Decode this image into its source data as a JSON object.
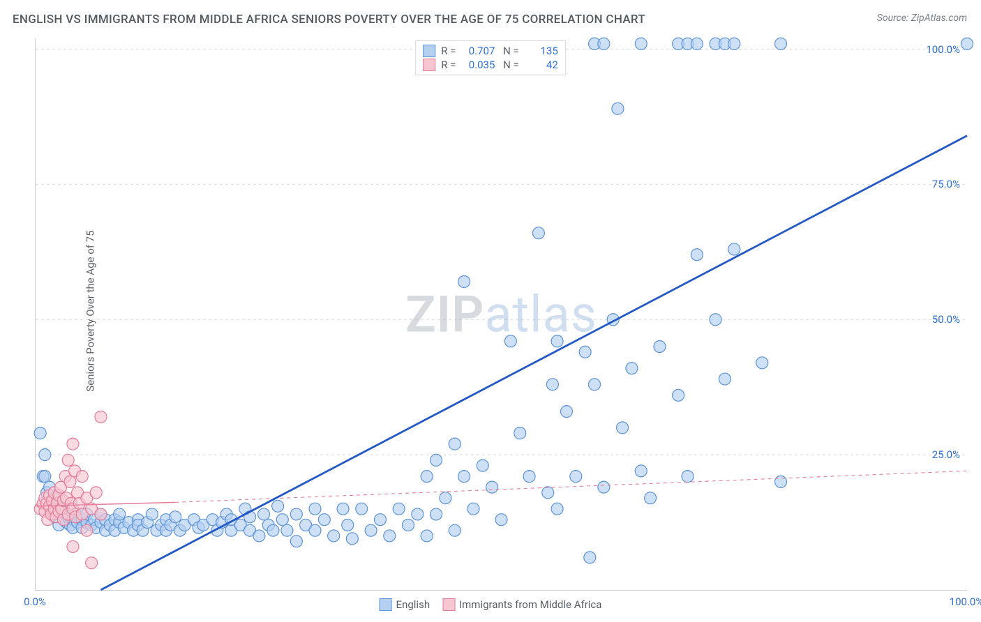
{
  "title": "ENGLISH VS IMMIGRANTS FROM MIDDLE AFRICA SENIORS POVERTY OVER THE AGE OF 75 CORRELATION CHART",
  "source": "Source: ZipAtlas.com",
  "y_axis_label": "Seniors Poverty Over the Age of 75",
  "watermark": {
    "part1": "ZIP",
    "part2": "atlas"
  },
  "chart": {
    "type": "scatter",
    "xlim": [
      0,
      100
    ],
    "ylim": [
      0,
      102
    ],
    "background": "#ffffff",
    "grid_color": "#d8dce2",
    "axis_color": "#c8ccd2",
    "y_ticks": [
      25,
      50,
      75,
      100
    ],
    "y_tick_labels": [
      "25.0%",
      "50.0%",
      "75.0%",
      "100.0%"
    ],
    "x_ticks": [
      0,
      100
    ],
    "x_tick_labels": [
      "0.0%",
      "100.0%"
    ],
    "tick_label_color": "#2e6fd6",
    "marker_radius": 8.5,
    "marker_stroke_width": 1.2
  },
  "series": {
    "english": {
      "label": "English",
      "R": "0.707",
      "N": "135",
      "fill": "#b4cfef",
      "stroke": "#5c93d6",
      "fill_opacity": 0.65,
      "trend": {
        "x1": 7,
        "y1": 0,
        "x2": 100,
        "y2": 84,
        "stroke": "#2358c5",
        "width": 2.8,
        "dash": ""
      },
      "points": [
        [
          0.5,
          29
        ],
        [
          0.8,
          21
        ],
        [
          1,
          21
        ],
        [
          1,
          25
        ],
        [
          1.2,
          18
        ],
        [
          1.5,
          19
        ],
        [
          1.5,
          15
        ],
        [
          1.7,
          16.5
        ],
        [
          2,
          17
        ],
        [
          2,
          13.5
        ],
        [
          2.3,
          14
        ],
        [
          2.5,
          15.5
        ],
        [
          2.5,
          12
        ],
        [
          2.8,
          14.5
        ],
        [
          3,
          13
        ],
        [
          3,
          15
        ],
        [
          3.3,
          12.5
        ],
        [
          3.5,
          13.5
        ],
        [
          3.7,
          12
        ],
        [
          4,
          13
        ],
        [
          4,
          11.5
        ],
        [
          4.3,
          14
        ],
        [
          4.5,
          12.5
        ],
        [
          5,
          13
        ],
        [
          5,
          11.5
        ],
        [
          5.5,
          12.5
        ],
        [
          5.5,
          14
        ],
        [
          6,
          12
        ],
        [
          6.3,
          13
        ],
        [
          6.5,
          11.5
        ],
        [
          7,
          12.5
        ],
        [
          7,
          14
        ],
        [
          7.5,
          13
        ],
        [
          7.5,
          11
        ],
        [
          8,
          12
        ],
        [
          8.5,
          13
        ],
        [
          8.5,
          11
        ],
        [
          9,
          12.5
        ],
        [
          9,
          14
        ],
        [
          9.5,
          11.5
        ],
        [
          10,
          12.5
        ],
        [
          10.5,
          11
        ],
        [
          11,
          13
        ],
        [
          11,
          12
        ],
        [
          11.5,
          11
        ],
        [
          12,
          12.5
        ],
        [
          12.5,
          14
        ],
        [
          13,
          11
        ],
        [
          13.5,
          12
        ],
        [
          14,
          13
        ],
        [
          14,
          11
        ],
        [
          14.5,
          12
        ],
        [
          15,
          13.5
        ],
        [
          15.5,
          11
        ],
        [
          16,
          12
        ],
        [
          17,
          13
        ],
        [
          17.5,
          11.5
        ],
        [
          18,
          12
        ],
        [
          19,
          13
        ],
        [
          19.5,
          11
        ],
        [
          20,
          12.5
        ],
        [
          20.5,
          14
        ],
        [
          21,
          11
        ],
        [
          21,
          13
        ],
        [
          22,
          12
        ],
        [
          22.5,
          15
        ],
        [
          23,
          11
        ],
        [
          23,
          13.5
        ],
        [
          24,
          10
        ],
        [
          24.5,
          14
        ],
        [
          25,
          12
        ],
        [
          25.5,
          11
        ],
        [
          26,
          15.5
        ],
        [
          26.5,
          13
        ],
        [
          27,
          11
        ],
        [
          28,
          14
        ],
        [
          28,
          9
        ],
        [
          29,
          12
        ],
        [
          30,
          15
        ],
        [
          30,
          11
        ],
        [
          31,
          13
        ],
        [
          32,
          10
        ],
        [
          33,
          15
        ],
        [
          33.5,
          12
        ],
        [
          34,
          9.5
        ],
        [
          35,
          15
        ],
        [
          36,
          11
        ],
        [
          37,
          13
        ],
        [
          38,
          10
        ],
        [
          39,
          15
        ],
        [
          40,
          12
        ],
        [
          41,
          14
        ],
        [
          42,
          21
        ],
        [
          42,
          10
        ],
        [
          43,
          24
        ],
        [
          43,
          14
        ],
        [
          44,
          17
        ],
        [
          45,
          11
        ],
        [
          45,
          27
        ],
        [
          46,
          21
        ],
        [
          46,
          57
        ],
        [
          47,
          15
        ],
        [
          48,
          23
        ],
        [
          49,
          19
        ],
        [
          50,
          13
        ],
        [
          51,
          46
        ],
        [
          52,
          29
        ],
        [
          53,
          21
        ],
        [
          54,
          66
        ],
        [
          55,
          18
        ],
        [
          55.5,
          38
        ],
        [
          56,
          46
        ],
        [
          56,
          15
        ],
        [
          57,
          33
        ],
        [
          58,
          21
        ],
        [
          59,
          44
        ],
        [
          59.5,
          6
        ],
        [
          60,
          38
        ],
        [
          61,
          19
        ],
        [
          62.5,
          89
        ],
        [
          62,
          50
        ],
        [
          63,
          30
        ],
        [
          64,
          41
        ],
        [
          65,
          22
        ],
        [
          66,
          17
        ],
        [
          67,
          45
        ],
        [
          69,
          36
        ],
        [
          70,
          21
        ],
        [
          71,
          62
        ],
        [
          73,
          50
        ],
        [
          74,
          39
        ],
        [
          75,
          63
        ],
        [
          78,
          42
        ],
        [
          80,
          20
        ],
        [
          60,
          101
        ],
        [
          61,
          101
        ],
        [
          65,
          101
        ],
        [
          69,
          101
        ],
        [
          70,
          101
        ],
        [
          71,
          101
        ],
        [
          73,
          101
        ],
        [
          74,
          101
        ],
        [
          75,
          101
        ],
        [
          80,
          101
        ],
        [
          100,
          101
        ]
      ]
    },
    "immigrants": {
      "label": "Immigrants from Middle Africa",
      "R": "0.035",
      "N": "42",
      "fill": "#f7c6d1",
      "stroke": "#e37c9a",
      "fill_opacity": 0.65,
      "trend_solid": {
        "x1": 0,
        "y1": 15.5,
        "x2": 15,
        "y2": 16.2,
        "stroke": "#e37c9a",
        "width": 1.4
      },
      "trend_dash": {
        "x1": 15,
        "y1": 16.2,
        "x2": 100,
        "y2": 22,
        "stroke": "#e37c9a",
        "width": 1.1,
        "dash": "5 5"
      },
      "points": [
        [
          0.5,
          15
        ],
        [
          0.8,
          16
        ],
        [
          1,
          14.5
        ],
        [
          1,
          17
        ],
        [
          1.2,
          16
        ],
        [
          1.3,
          13
        ],
        [
          1.5,
          15.5
        ],
        [
          1.5,
          17.5
        ],
        [
          1.7,
          14
        ],
        [
          1.8,
          16.5
        ],
        [
          2,
          15
        ],
        [
          2,
          18
        ],
        [
          2.2,
          13.5
        ],
        [
          2.3,
          16
        ],
        [
          2.5,
          17.5
        ],
        [
          2.5,
          14.5
        ],
        [
          2.7,
          19
        ],
        [
          2.8,
          15
        ],
        [
          3,
          16.5
        ],
        [
          3,
          13
        ],
        [
          3.2,
          21
        ],
        [
          3.3,
          17
        ],
        [
          3.5,
          14
        ],
        [
          3.5,
          24
        ],
        [
          3.7,
          20
        ],
        [
          3.8,
          16
        ],
        [
          4,
          15
        ],
        [
          4,
          27
        ],
        [
          4.2,
          22
        ],
        [
          4.3,
          13.5
        ],
        [
          4.5,
          18
        ],
        [
          4.7,
          16
        ],
        [
          5,
          14
        ],
        [
          5,
          21
        ],
        [
          5.5,
          17
        ],
        [
          5.5,
          11
        ],
        [
          6,
          15
        ],
        [
          6.5,
          18
        ],
        [
          7,
          14
        ],
        [
          7,
          32
        ],
        [
          4,
          8
        ],
        [
          6,
          5
        ]
      ]
    }
  },
  "bottom_legend": {
    "item1": "English",
    "item2": "Immigrants from Middle Africa"
  }
}
